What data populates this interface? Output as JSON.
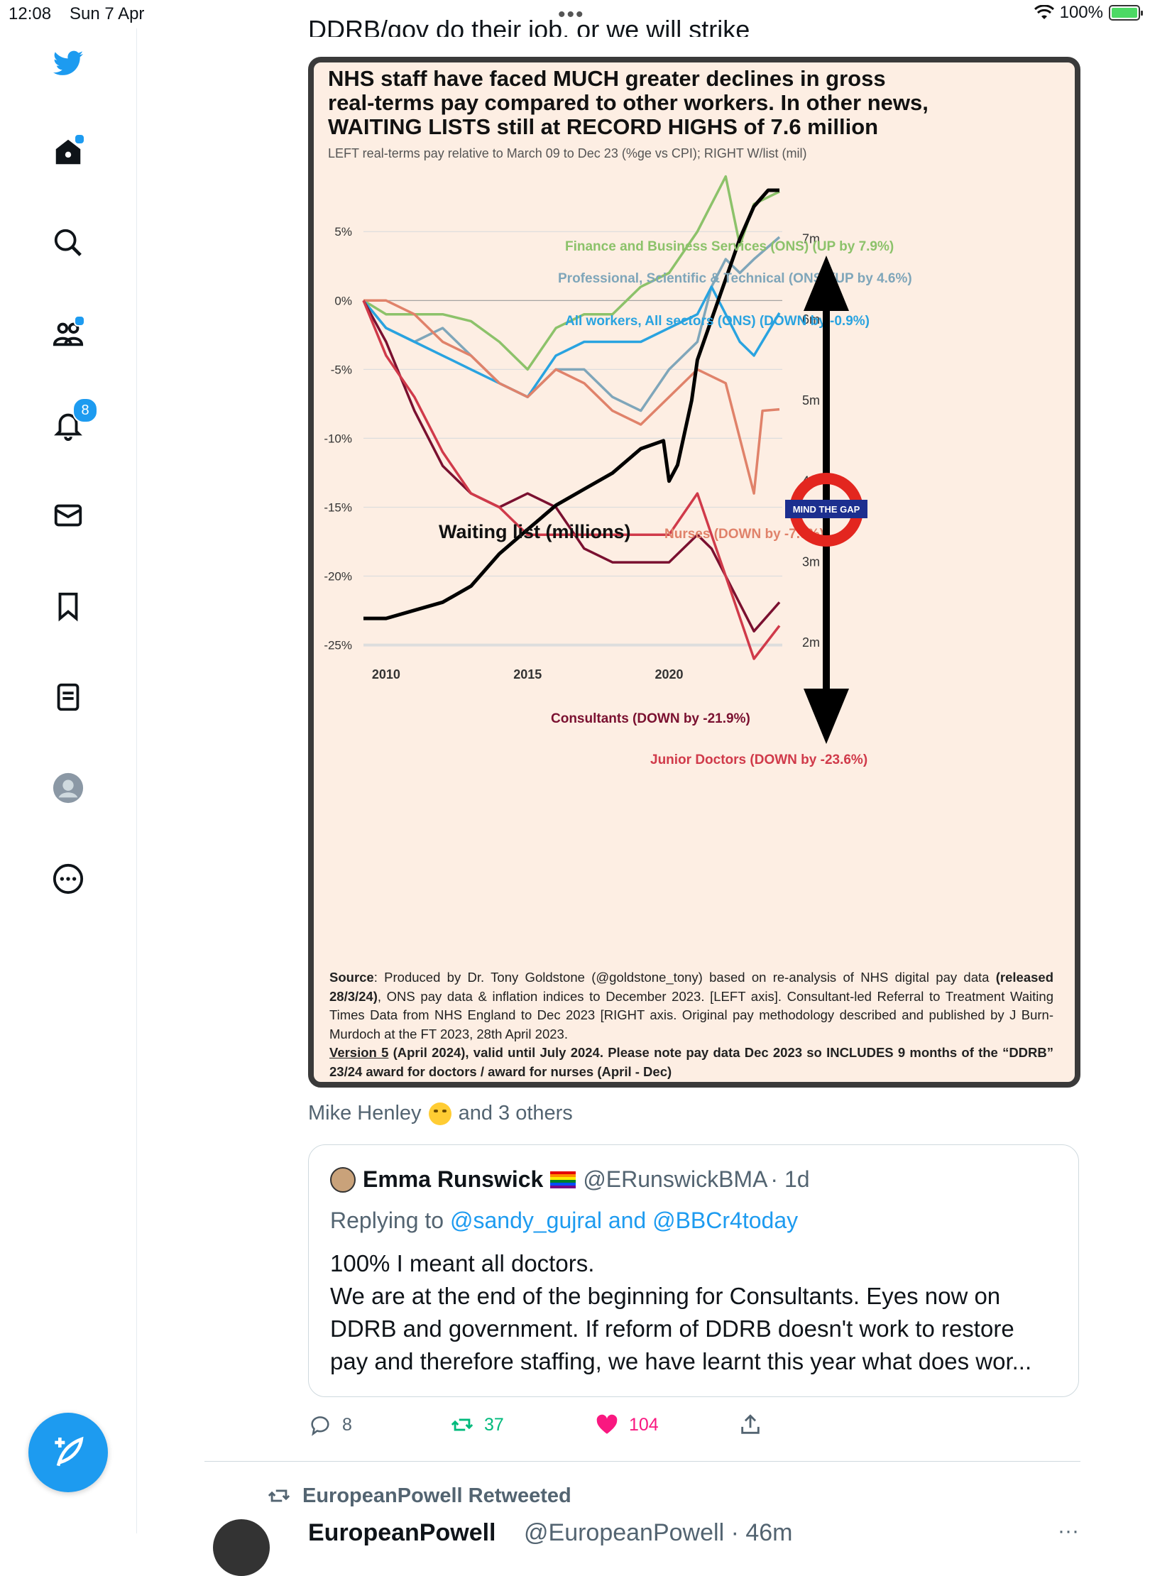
{
  "status": {
    "time": "12:08",
    "date": "Sun 7 Apr",
    "battery": "100%"
  },
  "sidebar": {
    "items": [
      "home",
      "explore",
      "communities",
      "notifications",
      "messages",
      "bookmarks",
      "lists",
      "profile",
      "more"
    ],
    "notifications_badge": "8"
  },
  "tweet": {
    "cut_text": "DDRB/gov do their job, or we will strike",
    "likers": {
      "name": "Mike Henley",
      "rest": "and 3 others"
    },
    "quote": {
      "name": "Emma Runswick",
      "handle": "@ERunswickBMA",
      "time": "· 1d",
      "replying_prefix": "Replying to ",
      "replying_to": "@sandy_gujral and @BBCr4today",
      "lines": [
        "100% I meant all doctors.",
        "We are at the end of the beginning for Consultants. Eyes now on",
        "DDRB and government. If reform of DDRB doesn't work to restore",
        "pay and therefore staffing, we have learnt this year what does wor..."
      ]
    },
    "actions": {
      "replies": "8",
      "retweets": "37",
      "likes": "104"
    },
    "colors": {
      "retweet": "#00ba7c",
      "like": "#f91880",
      "link": "#1d9bf0"
    }
  },
  "next": {
    "retweeted_by": "EuropeanPowell Retweeted",
    "name": "EuropeanPowell",
    "handle": "@EuropeanPowell · 46m"
  },
  "chart_data": {
    "type": "line",
    "title": "NHS staff have faced MUCH greater declines in gross real-terms pay compared to other workers. In other news, WAITING LISTS still at RECORD HIGHS of 7.6 million",
    "title_lines": [
      "NHS staff have faced MUCH greater declines in gross",
      "real-terms pay compared to other workers. In other news,",
      "WAITING LISTS still at RECORD HIGHS of 7.6 million"
    ],
    "subtitle": "LEFT real-terms pay relative to March 09 to Dec 23 (%ge vs CPI); RIGHT W/list (mil)",
    "x_ticks": [
      "2010",
      "2015",
      "2020"
    ],
    "left_ticks": [
      "5%",
      "0%",
      "-5%",
      "-10%",
      "-15%",
      "-20%",
      "-25%"
    ],
    "left_tick_values": [
      5,
      0,
      -5,
      -10,
      -15,
      -20,
      -25
    ],
    "right_ticks": [
      "7m",
      "6m",
      "5m",
      "4m",
      "3m",
      "2m"
    ],
    "right_tick_values": [
      7,
      6,
      5,
      4,
      3,
      2
    ],
    "xlim": [
      2009.2,
      2024.0
    ],
    "ylim_left": [
      -26,
      8
    ],
    "ylim_right": [
      1.8,
      7.6
    ],
    "series": [
      {
        "name": "Finance and Business Services (ONS) (UP by 7.9%)",
        "axis": "left",
        "color": "#8cc26a",
        "x": [
          2009.2,
          2010,
          2011,
          2012,
          2013,
          2014,
          2015,
          2016,
          2017,
          2018,
          2019,
          2020,
          2021,
          2021.5,
          2022,
          2022.5,
          2023,
          2023.9
        ],
        "y": [
          0,
          -1,
          -1,
          -1,
          -1.5,
          -3,
          -5,
          -2,
          -1,
          -1,
          1,
          2,
          5,
          7,
          9,
          4,
          7,
          7.9
        ]
      },
      {
        "name": "Professional, Scientific & Technical (ONS) (UP by 4.6%)",
        "axis": "left",
        "color": "#7fa6ba",
        "x": [
          2009.2,
          2010,
          2011,
          2012,
          2013,
          2014,
          2015,
          2016,
          2017,
          2018,
          2019,
          2020,
          2021,
          2021.5,
          2022,
          2022.5,
          2023,
          2023.9
        ],
        "y": [
          0,
          -2,
          -3,
          -2,
          -4,
          -6,
          -7,
          -5,
          -5,
          -7,
          -8,
          -5,
          -3,
          1,
          3,
          2,
          3,
          4.6
        ]
      },
      {
        "name": "All workers, All sectors (ONS) (DOWN by -0.9%)",
        "axis": "left",
        "color": "#29a3e0",
        "x": [
          2009.2,
          2010,
          2011,
          2012,
          2013,
          2014,
          2015,
          2016,
          2017,
          2018,
          2019,
          2020,
          2021,
          2021.5,
          2022,
          2022.5,
          2023,
          2023.9
        ],
        "y": [
          0,
          -2,
          -3,
          -4,
          -5,
          -6,
          -7,
          -4,
          -3,
          -3,
          -3,
          -2,
          -1,
          1,
          -1,
          -3,
          -4,
          -0.9
        ]
      },
      {
        "name": "Nurses (DOWN by -7.9%)",
        "axis": "left",
        "color": "#e0826a",
        "x": [
          2009.2,
          2010,
          2011,
          2012,
          2013,
          2014,
          2015,
          2016,
          2017,
          2018,
          2019,
          2020,
          2021,
          2022,
          2022.5,
          2023,
          2023.3,
          2023.9
        ],
        "y": [
          0,
          0,
          -1,
          -3,
          -4,
          -6,
          -7,
          -5,
          -6,
          -8,
          -9,
          -7,
          -5,
          -6,
          -10,
          -14,
          -8,
          -7.9
        ]
      },
      {
        "name": "Consultants (DOWN by -21.9%)",
        "axis": "left",
        "color": "#7a1030",
        "x": [
          2009.2,
          2010,
          2011,
          2012,
          2013,
          2014,
          2015,
          2016,
          2017,
          2018,
          2019,
          2020,
          2021,
          2021.5,
          2022,
          2022.5,
          2023,
          2023.9
        ],
        "y": [
          0,
          -3,
          -8,
          -12,
          -14,
          -15,
          -14,
          -15,
          -18,
          -19,
          -19,
          -19,
          -17,
          -18,
          -20,
          -22,
          -24,
          -21.9
        ]
      },
      {
        "name": "Junior Doctors (DOWN by -23.6%)",
        "axis": "left",
        "color": "#d03a4a",
        "x": [
          2009.2,
          2010,
          2011,
          2012,
          2013,
          2014,
          2015,
          2016,
          2017,
          2018,
          2019,
          2020,
          2021,
          2021.5,
          2022,
          2022.5,
          2023,
          2023.9
        ],
        "y": [
          0,
          -4,
          -7,
          -11,
          -14,
          -15,
          -17,
          -17,
          -17,
          -17,
          -17,
          -17,
          -14,
          -17,
          -20,
          -23,
          -26,
          -23.6
        ]
      },
      {
        "name": "Waiting list (millions)",
        "axis": "right",
        "color": "#000000",
        "x": [
          2009.2,
          2010,
          2011,
          2012,
          2013,
          2014,
          2015,
          2016,
          2017,
          2018,
          2019,
          2019.8,
          2020,
          2020.3,
          2020.8,
          2021,
          2021.5,
          2022,
          2022.5,
          2023,
          2023.5,
          2023.9
        ],
        "y": [
          2.3,
          2.3,
          2.4,
          2.5,
          2.7,
          3.1,
          3.4,
          3.7,
          3.9,
          4.1,
          4.4,
          4.5,
          4.0,
          4.2,
          5.0,
          5.5,
          6.0,
          6.5,
          7.0,
          7.4,
          7.6,
          7.6
        ]
      }
    ],
    "annotations": {
      "waiting_list_label": "Waiting list (millions)",
      "mind_the_gap": "MIND THE GAP"
    },
    "source_text": {
      "line1_bold": "Source",
      "line1": ": Produced by Dr. Tony Goldstone (@goldstone_tony) based on re-analysis of NHS digital pay data ",
      "line1_bold2": "(released 28/3/24)",
      "line2": ", ONS pay data & inflation indices to December 2023. [LEFT axis]. Consultant-led Referral to Treatment Waiting Times Data from NHS England to Dec 2023 [RIGHT axis. Original pay methodology described and published by J Burn-Murdoch at the FT 2023, 28th April 2023.",
      "version": "Version 5",
      "version_rest": " (April 2024), valid until July 2024. Please note pay data Dec 2023 so INCLUDES 9 months of the “DDRB” 23/24 award  for doctors / award for nurses (April - Dec)"
    }
  }
}
